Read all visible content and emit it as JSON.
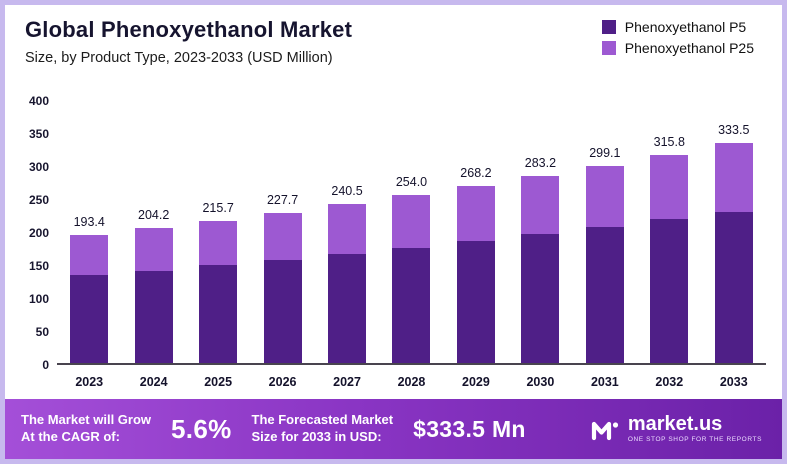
{
  "header": {
    "title": "Global Phenoxyethanol Market",
    "subtitle": "Size, by Product Type, 2023-2033 (USD Million)"
  },
  "chart_data": {
    "type": "bar",
    "stacked": true,
    "title": "Global Phenoxyethanol Market",
    "subtitle": "Size, by Product Type, 2023-2033 (USD Million)",
    "categories": [
      "2023",
      "2024",
      "2025",
      "2026",
      "2027",
      "2028",
      "2029",
      "2030",
      "2031",
      "2032",
      "2033"
    ],
    "totals": [
      193.4,
      204.2,
      215.7,
      227.7,
      240.5,
      254.0,
      268.2,
      283.2,
      299.1,
      315.8,
      333.5
    ],
    "total_labels": [
      "193.4",
      "204.2",
      "215.7",
      "227.7",
      "240.5",
      "254.0",
      "268.2",
      "283.2",
      "299.1",
      "315.8",
      "333.5"
    ],
    "series": [
      {
        "name": "Phenoxyethanol P5",
        "color": "#4f1f87",
        "values": [
          133.0,
          140.0,
          148.0,
          156.5,
          165.0,
          174.5,
          184.5,
          195.0,
          206.0,
          217.5,
          229.5
        ]
      },
      {
        "name": "Phenoxyethanol P25",
        "color": "#9d59d2",
        "values": [
          60.4,
          64.2,
          67.7,
          71.2,
          75.5,
          79.5,
          83.7,
          88.2,
          93.1,
          98.3,
          104.0
        ]
      }
    ],
    "xlabel": "",
    "ylabel": "",
    "ylim": [
      0,
      400
    ],
    "yticks": [
      0,
      50,
      100,
      150,
      200,
      250,
      300,
      350,
      400
    ],
    "grid": false,
    "legend_position": "top-right"
  },
  "banner": {
    "cagr_label": "The Market will Grow\nAt the CAGR of:",
    "cagr_value": "5.6%",
    "forecast_label": "The Forecasted Market\nSize for 2033 in USD:",
    "forecast_value": "$333.5 Mn",
    "logo_text": "market.us",
    "logo_tagline": "One Stop Shop For The Reports"
  },
  "colors": {
    "p5": "#4f1f87",
    "p25": "#9d59d2",
    "banner_gradient_start": "#a44fd8",
    "banner_gradient_end": "#6b21a8",
    "frame_border": "#c7b9ee"
  }
}
